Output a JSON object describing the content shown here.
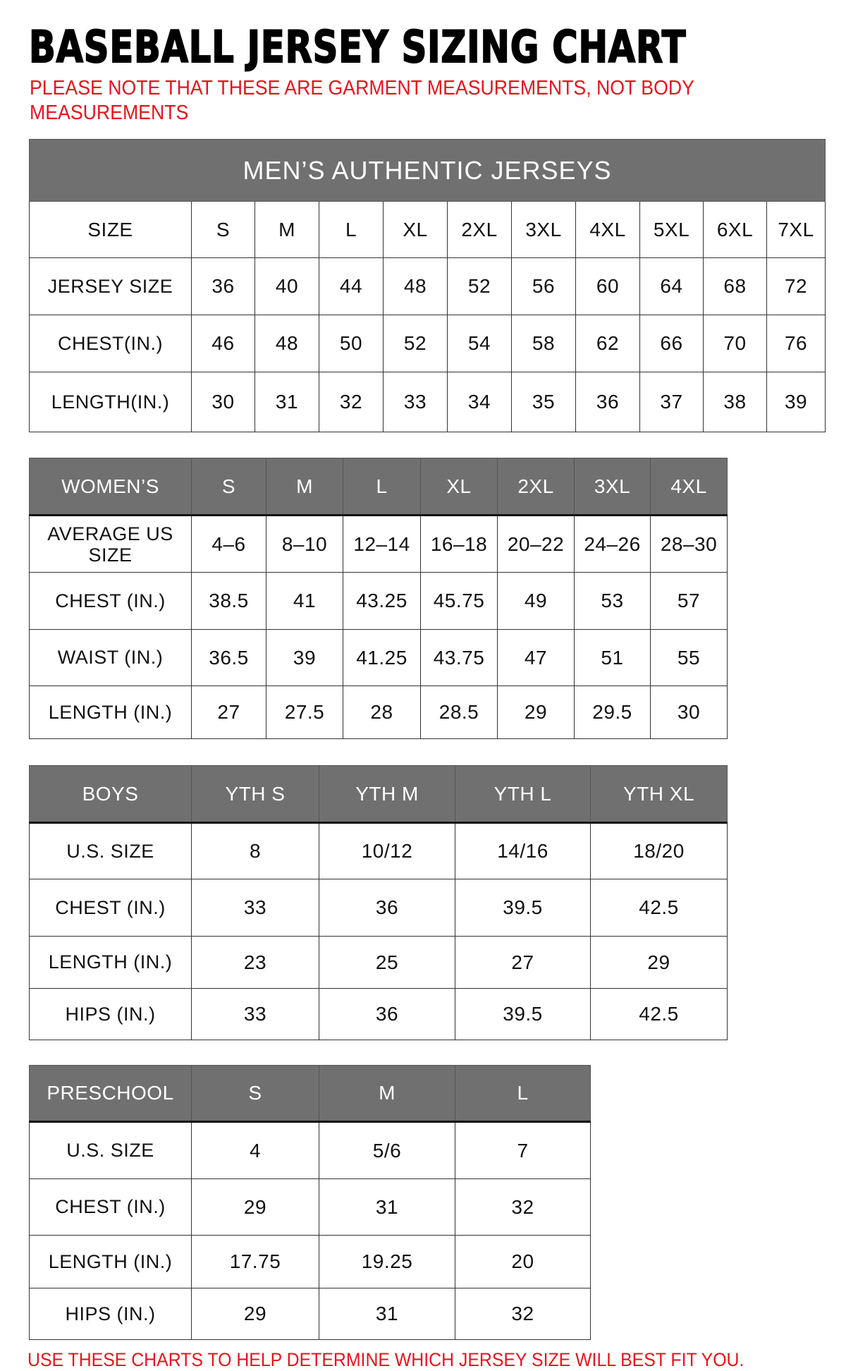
{
  "title": "BASEBALL JERSEY SIZING CHART",
  "note_line1": "PLEASE NOTE THAT THESE ARE GARMENT MEASUREMENTS, NOT BODY",
  "note_line2": "MEASUREMENTS",
  "footer": "USE THESE CHARTS TO HELP DETERMINE WHICH JERSEY SIZE WILL BEST FIT YOU.",
  "colors": {
    "header_gray": "#707070",
    "note_red": "#e8131b"
  },
  "mens": {
    "banner": "MEN’S AUTHENTIC JERSEYS",
    "header": [
      "SIZE",
      "S",
      "M",
      "L",
      "XL",
      "2XL",
      "3XL",
      "4XL",
      "5XL",
      "6XL",
      "7XL"
    ],
    "rows": [
      [
        "JERSEY SIZE",
        "36",
        "40",
        "44",
        "48",
        "52",
        "56",
        "60",
        "64",
        "68",
        "72"
      ],
      [
        "CHEST(IN.)",
        "46",
        "48",
        "50",
        "52",
        "54",
        "58",
        "62",
        "66",
        "70",
        "76"
      ],
      [
        "LENGTH(IN.)",
        "30",
        "31",
        "32",
        "33",
        "34",
        "35",
        "36",
        "37",
        "38",
        "39"
      ]
    ]
  },
  "womens": {
    "header": [
      "WOMEN’S",
      "S",
      "M",
      "L",
      "XL",
      "2XL",
      "3XL",
      "4XL"
    ],
    "rows": [
      [
        "AVERAGE US SIZE",
        "4–6",
        "8–10",
        "12–14",
        "16–18",
        "20–22",
        "24–26",
        "28–30"
      ],
      [
        "CHEST (IN.)",
        "38.5",
        "41",
        "43.25",
        "45.75",
        "49",
        "53",
        "57"
      ],
      [
        "WAIST (IN.)",
        "36.5",
        "39",
        "41.25",
        "43.75",
        "47",
        "51",
        "55"
      ],
      [
        "LENGTH (IN.)",
        "27",
        "27.5",
        "28",
        "28.5",
        "29",
        "29.5",
        "30"
      ]
    ]
  },
  "boys": {
    "header": [
      "BOYS",
      "YTH S",
      "YTH M",
      "YTH L",
      "YTH XL"
    ],
    "rows": [
      [
        "U.S. SIZE",
        "8",
        "10/12",
        "14/16",
        "18/20"
      ],
      [
        "CHEST (IN.)",
        "33",
        "36",
        "39.5",
        "42.5"
      ],
      [
        "LENGTH (IN.)",
        "23",
        "25",
        "27",
        "29"
      ],
      [
        "HIPS (IN.)",
        "33",
        "36",
        "39.5",
        "42.5"
      ]
    ]
  },
  "preschool": {
    "header": [
      "PRESCHOOL",
      "S",
      "M",
      "L"
    ],
    "rows": [
      [
        "U.S. SIZE",
        "4",
        "5/6",
        "7"
      ],
      [
        "CHEST (IN.)",
        "29",
        "31",
        "32"
      ],
      [
        "LENGTH (IN.)",
        "17.75",
        "19.25",
        "20"
      ],
      [
        "HIPS (IN.)",
        "29",
        "31",
        "32"
      ]
    ]
  }
}
